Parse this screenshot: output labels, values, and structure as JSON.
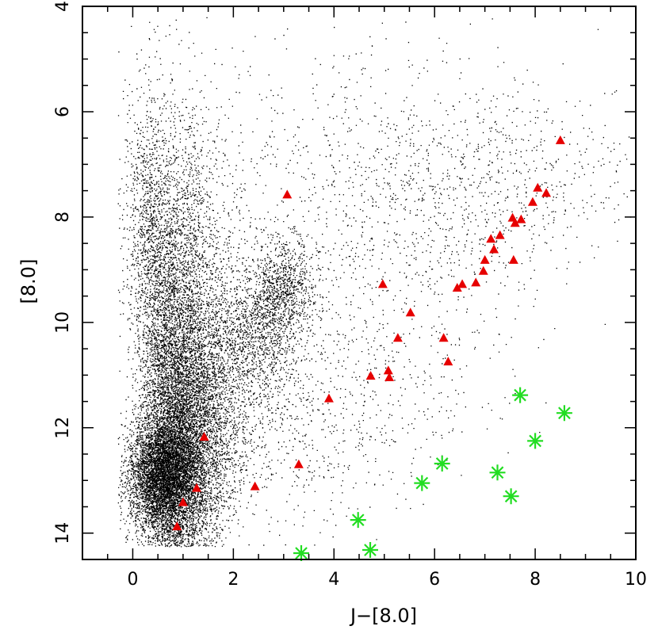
{
  "chart_data": {
    "type": "scatter",
    "xlabel": "J−[8.0]",
    "ylabel": "[8.0]",
    "xlim": [
      -1,
      10
    ],
    "ylim": [
      14.5,
      4
    ],
    "y_inverted": true,
    "x_major_ticks": [
      0,
      2,
      4,
      6,
      8,
      10
    ],
    "y_major_ticks": [
      4,
      6,
      8,
      10,
      12,
      14
    ],
    "x_minor_step": 0.5,
    "y_minor_step": 0.5,
    "grid": false,
    "colors": {
      "background_points": "#000000",
      "red_triangles": "#e60000",
      "green_stars": "#22dd22"
    },
    "background_density": [
      {
        "cx": 0.55,
        "cy": 12.9,
        "sx": 0.33,
        "sy": 0.55,
        "weight": 4500
      },
      {
        "cx": 0.95,
        "cy": 12.6,
        "sx": 0.35,
        "sy": 1.2,
        "weight": 3500
      },
      {
        "cx": 0.7,
        "cy": 10.5,
        "sx": 0.25,
        "sy": 2.0,
        "weight": 2000
      },
      {
        "cx": 1.15,
        "cy": 10.8,
        "sx": 0.4,
        "sy": 1.4,
        "weight": 2000
      },
      {
        "cx": 0.4,
        "cy": 9.0,
        "sx": 0.22,
        "sy": 1.6,
        "weight": 900
      },
      {
        "cx": 1.4,
        "cy": 12.2,
        "sx": 0.45,
        "sy": 1.0,
        "weight": 1500
      },
      {
        "cx": 2.4,
        "cy": 10.2,
        "sx": 0.45,
        "sy": 0.6,
        "weight": 1100
      },
      {
        "cx": 3.0,
        "cy": 9.3,
        "sx": 0.3,
        "sy": 0.45,
        "weight": 800
      },
      {
        "cx": 0.2,
        "cy": 8.0,
        "sx": 0.3,
        "sy": 1.3,
        "weight": 500
      },
      {
        "cx": 1.6,
        "cy": 9.5,
        "sx": 0.4,
        "sy": 1.8,
        "weight": 600
      },
      {
        "cx": 1.1,
        "cy": 8.2,
        "sx": 0.2,
        "sy": 1.3,
        "weight": 400
      },
      {
        "cx": 2.8,
        "cy": 11.5,
        "sx": 1.0,
        "sy": 1.2,
        "weight": 700
      },
      {
        "cx": 5.0,
        "cy": 8.5,
        "sx": 1.6,
        "sy": 1.5,
        "weight": 700
      },
      {
        "cx": 7.0,
        "cy": 7.3,
        "sx": 1.5,
        "sy": 1.0,
        "weight": 700
      },
      {
        "cx": 4.5,
        "cy": 11.6,
        "sx": 1.2,
        "sy": 1.0,
        "weight": 300
      },
      {
        "cx": 3.5,
        "cy": 6.5,
        "sx": 1.8,
        "sy": 1.2,
        "weight": 300
      }
    ],
    "series": [
      {
        "marker": "triangle",
        "color": "#e60000",
        "points": [
          {
            "x": 3.07,
            "y": 7.58
          },
          {
            "x": 8.5,
            "y": 6.55
          },
          {
            "x": 8.05,
            "y": 7.45
          },
          {
            "x": 8.22,
            "y": 7.55
          },
          {
            "x": 7.95,
            "y": 7.72
          },
          {
            "x": 7.55,
            "y": 8.02
          },
          {
            "x": 7.72,
            "y": 8.05
          },
          {
            "x": 7.6,
            "y": 8.12
          },
          {
            "x": 7.3,
            "y": 8.35
          },
          {
            "x": 7.12,
            "y": 8.42
          },
          {
            "x": 7.18,
            "y": 8.62
          },
          {
            "x": 7.0,
            "y": 8.82
          },
          {
            "x": 7.57,
            "y": 8.82
          },
          {
            "x": 6.97,
            "y": 9.03
          },
          {
            "x": 6.82,
            "y": 9.25
          },
          {
            "x": 6.55,
            "y": 9.28
          },
          {
            "x": 6.45,
            "y": 9.35
          },
          {
            "x": 4.97,
            "y": 9.28
          },
          {
            "x": 5.52,
            "y": 9.82
          },
          {
            "x": 5.27,
            "y": 10.3
          },
          {
            "x": 6.18,
            "y": 10.3
          },
          {
            "x": 6.27,
            "y": 10.75
          },
          {
            "x": 5.08,
            "y": 10.92
          },
          {
            "x": 4.73,
            "y": 11.02
          },
          {
            "x": 5.1,
            "y": 11.05
          },
          {
            "x": 3.9,
            "y": 11.45
          },
          {
            "x": 1.42,
            "y": 12.18
          },
          {
            "x": 3.3,
            "y": 12.7
          },
          {
            "x": 2.43,
            "y": 13.12
          },
          {
            "x": 1.27,
            "y": 13.15
          },
          {
            "x": 1.0,
            "y": 13.42
          },
          {
            "x": 0.88,
            "y": 13.88
          }
        ]
      },
      {
        "marker": "star",
        "color": "#22dd22",
        "points": [
          {
            "x": 7.7,
            "y": 11.38
          },
          {
            "x": 8.58,
            "y": 11.72
          },
          {
            "x": 8.0,
            "y": 12.25
          },
          {
            "x": 6.15,
            "y": 12.68
          },
          {
            "x": 7.25,
            "y": 12.85
          },
          {
            "x": 5.75,
            "y": 13.05
          },
          {
            "x": 7.52,
            "y": 13.3
          },
          {
            "x": 4.48,
            "y": 13.75
          },
          {
            "x": 4.72,
            "y": 14.32
          },
          {
            "x": 3.35,
            "y": 14.38
          }
        ]
      }
    ]
  }
}
